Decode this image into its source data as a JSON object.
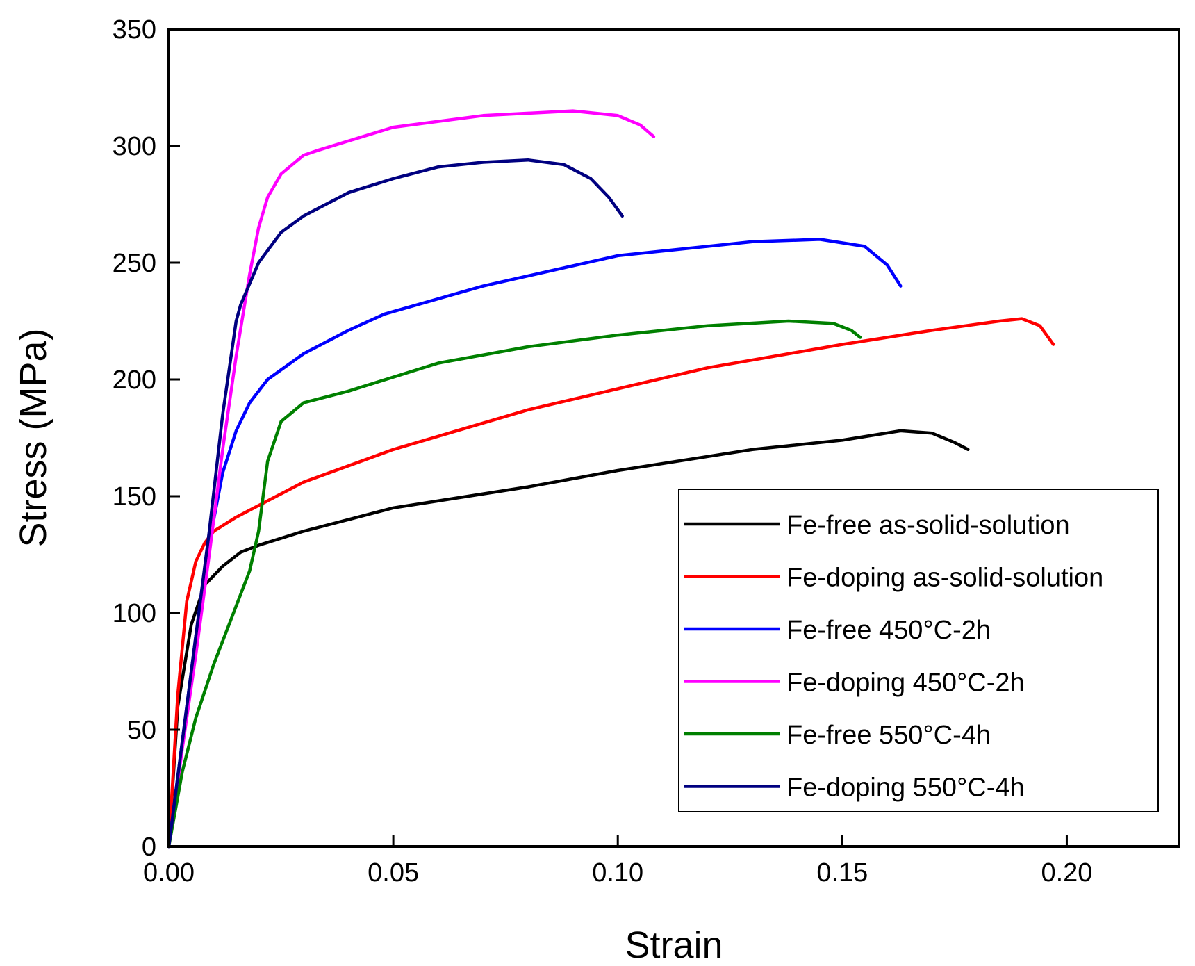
{
  "chart_data": {
    "type": "line",
    "title": "",
    "xlabel": "Strain",
    "ylabel": "Stress (MPa)",
    "xlim": [
      0,
      0.225
    ],
    "ylim": [
      0,
      350
    ],
    "xticks": [
      "0.00",
      "0.05",
      "0.10",
      "0.15",
      "0.20"
    ],
    "yticks": [
      "0",
      "50",
      "100",
      "150",
      "200",
      "250",
      "300",
      "350"
    ],
    "grid": false,
    "legend_position": "lower-right",
    "series": [
      {
        "name": "Fe-free as-solid-solution",
        "color": "#000000",
        "x": [
          0,
          0.002,
          0.005,
          0.008,
          0.012,
          0.016,
          0.02,
          0.03,
          0.05,
          0.08,
          0.1,
          0.13,
          0.15,
          0.163,
          0.17,
          0.175,
          0.178
        ],
        "y": [
          0,
          60,
          95,
          112,
          120,
          126,
          129,
          135,
          145,
          154,
          161,
          170,
          174,
          178,
          177,
          173,
          170
        ]
      },
      {
        "name": "Fe-doping as-solid-solution",
        "color": "#ff0000",
        "x": [
          0,
          0.002,
          0.004,
          0.006,
          0.008,
          0.01,
          0.015,
          0.02,
          0.03,
          0.05,
          0.08,
          0.1,
          0.12,
          0.15,
          0.17,
          0.185,
          0.19,
          0.194,
          0.197
        ],
        "y": [
          0,
          65,
          105,
          122,
          130,
          135,
          141,
          146,
          156,
          170,
          187,
          196,
          205,
          215,
          221,
          225,
          226,
          223,
          215
        ]
      },
      {
        "name": "Fe-free 450°C-2h",
        "color": "#0000ff",
        "x": [
          0,
          0.003,
          0.006,
          0.009,
          0.012,
          0.015,
          0.018,
          0.022,
          0.03,
          0.04,
          0.048,
          0.07,
          0.1,
          0.13,
          0.145,
          0.155,
          0.16,
          0.163
        ],
        "y": [
          0,
          45,
          90,
          130,
          160,
          178,
          190,
          200,
          211,
          221,
          228,
          240,
          253,
          259,
          260,
          257,
          249,
          240
        ]
      },
      {
        "name": "Fe-doping 450°C-2h",
        "color": "#ff00ff",
        "x": [
          0,
          0.003,
          0.006,
          0.009,
          0.012,
          0.015,
          0.018,
          0.02,
          0.022,
          0.025,
          0.03,
          0.033,
          0.05,
          0.07,
          0.09,
          0.1,
          0.105,
          0.108
        ],
        "y": [
          0,
          42,
          82,
          125,
          170,
          210,
          245,
          265,
          278,
          288,
          296,
          298,
          308,
          313,
          315,
          313,
          309,
          304
        ]
      },
      {
        "name": "Fe-free 550°C-4h",
        "color": "#008000",
        "x": [
          0,
          0.003,
          0.006,
          0.01,
          0.014,
          0.018,
          0.02,
          0.022,
          0.025,
          0.03,
          0.04,
          0.06,
          0.08,
          0.1,
          0.12,
          0.138,
          0.148,
          0.152,
          0.154
        ],
        "y": [
          0,
          32,
          55,
          78,
          98,
          118,
          135,
          165,
          182,
          190,
          195,
          207,
          214,
          219,
          223,
          225,
          224,
          221,
          218
        ]
      },
      {
        "name": "Fe-doping 550°C-4h",
        "color": "#000080",
        "x": [
          0,
          0.003,
          0.006,
          0.009,
          0.012,
          0.015,
          0.016,
          0.02,
          0.025,
          0.03,
          0.04,
          0.05,
          0.06,
          0.07,
          0.08,
          0.088,
          0.094,
          0.098,
          0.101
        ],
        "y": [
          0,
          45,
          90,
          135,
          185,
          225,
          232,
          250,
          263,
          270,
          280,
          286,
          291,
          293,
          294,
          292,
          286,
          278,
          270
        ]
      }
    ]
  }
}
